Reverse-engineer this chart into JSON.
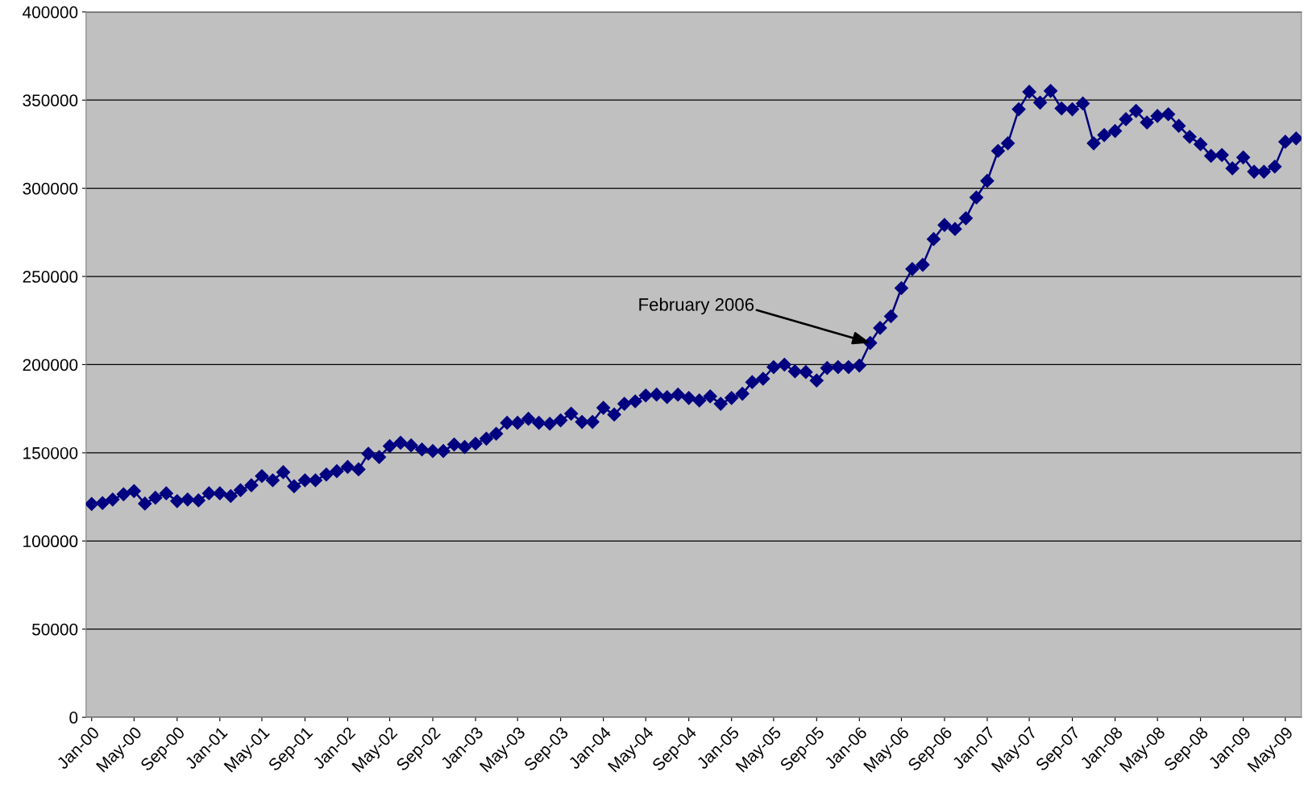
{
  "chart_data": {
    "type": "line",
    "x": [
      "2000-01",
      "2000-02",
      "2000-03",
      "2000-04",
      "2000-05",
      "2000-06",
      "2000-07",
      "2000-08",
      "2000-09",
      "2000-10",
      "2000-11",
      "2000-12",
      "2001-01",
      "2001-02",
      "2001-03",
      "2001-04",
      "2001-05",
      "2001-06",
      "2001-07",
      "2001-08",
      "2001-09",
      "2001-10",
      "2001-11",
      "2001-12",
      "2002-01",
      "2002-02",
      "2002-03",
      "2002-04",
      "2002-05",
      "2002-06",
      "2002-07",
      "2002-08",
      "2002-09",
      "2002-10",
      "2002-11",
      "2002-12",
      "2003-01",
      "2003-02",
      "2003-03",
      "2003-04",
      "2003-05",
      "2003-06",
      "2003-07",
      "2003-08",
      "2003-09",
      "2003-10",
      "2003-11",
      "2003-12",
      "2004-01",
      "2004-02",
      "2004-03",
      "2004-04",
      "2004-05",
      "2004-06",
      "2004-07",
      "2004-08",
      "2004-09",
      "2004-10",
      "2004-11",
      "2004-12",
      "2005-01",
      "2005-02",
      "2005-03",
      "2005-04",
      "2005-05",
      "2005-06",
      "2005-07",
      "2005-08",
      "2005-09",
      "2005-10",
      "2005-11",
      "2005-12",
      "2006-01",
      "2006-02",
      "2006-03",
      "2006-04",
      "2006-05",
      "2006-06",
      "2006-07",
      "2006-08",
      "2006-09",
      "2006-10",
      "2006-11",
      "2006-12",
      "2007-01",
      "2007-02",
      "2007-03",
      "2007-04",
      "2007-05",
      "2007-06",
      "2007-07",
      "2007-08",
      "2007-09",
      "2007-10",
      "2007-11",
      "2007-12",
      "2008-01",
      "2008-02",
      "2008-03",
      "2008-04",
      "2008-05",
      "2008-06",
      "2008-07",
      "2008-08",
      "2008-09",
      "2008-10",
      "2008-11",
      "2008-12",
      "2009-01",
      "2009-02",
      "2009-03",
      "2009-04",
      "2009-05",
      "2009-06"
    ],
    "series": [
      {
        "color": "#000080",
        "values": [
          121000,
          121500,
          123500,
          126500,
          128300,
          121200,
          124500,
          127000,
          122600,
          123500,
          123000,
          127000,
          127000,
          125500,
          128800,
          131600,
          136800,
          134400,
          139000,
          131000,
          134400,
          134400,
          137700,
          139600,
          142000,
          140600,
          149500,
          147600,
          153800,
          155700,
          154200,
          151900,
          151000,
          151000,
          154700,
          153300,
          155200,
          158000,
          160800,
          167000,
          167000,
          169300,
          167000,
          166500,
          168400,
          172200,
          167500,
          167500,
          175500,
          171700,
          177800,
          179200,
          182500,
          183000,
          181600,
          183000,
          181100,
          179700,
          182000,
          177800,
          181100,
          183500,
          190100,
          192000,
          198600,
          200000,
          196200,
          195800,
          191000,
          198100,
          198600,
          198600,
          199500,
          212300,
          220800,
          227400,
          243400,
          254200,
          256600,
          271200,
          279200,
          276900,
          283000,
          294800,
          304200,
          321200,
          325500,
          344800,
          354700,
          348600,
          355200,
          345300,
          344800,
          348100,
          325500,
          330200,
          332500,
          339200,
          343900,
          337300,
          341000,
          342000,
          335400,
          329200,
          325000,
          318400,
          318900,
          311300,
          317500,
          309400,
          309400,
          312300,
          326400,
          328300
        ]
      }
    ],
    "xlim": [
      "1999-12-16",
      "2009-06-16"
    ],
    "xticks": [
      {
        "value": "2000-01",
        "label": "Jan-00"
      },
      {
        "value": "2000-05",
        "label": "May-00"
      },
      {
        "value": "2000-09",
        "label": "Sep-00"
      },
      {
        "value": "2001-01",
        "label": "Jan-01"
      },
      {
        "value": "2001-05",
        "label": "May-01"
      },
      {
        "value": "2001-09",
        "label": "Sep-01"
      },
      {
        "value": "2002-01",
        "label": "Jan-02"
      },
      {
        "value": "2002-05",
        "label": "May-02"
      },
      {
        "value": "2002-09",
        "label": "Sep-02"
      },
      {
        "value": "2003-01",
        "label": "Jan-03"
      },
      {
        "value": "2003-05",
        "label": "May-03"
      },
      {
        "value": "2003-09",
        "label": "Sep-03"
      },
      {
        "value": "2004-01",
        "label": "Jan-04"
      },
      {
        "value": "2004-05",
        "label": "May-04"
      },
      {
        "value": "2004-09",
        "label": "Sep-04"
      },
      {
        "value": "2005-01",
        "label": "Jan-05"
      },
      {
        "value": "2005-05",
        "label": "May-05"
      },
      {
        "value": "2005-09",
        "label": "Sep-05"
      },
      {
        "value": "2006-01",
        "label": "Jan-06"
      },
      {
        "value": "2006-05",
        "label": "May-06"
      },
      {
        "value": "2006-09",
        "label": "Sep-06"
      },
      {
        "value": "2007-01",
        "label": "Jan-07"
      },
      {
        "value": "2007-05",
        "label": "May-07"
      },
      {
        "value": "2007-09",
        "label": "Sep-07"
      },
      {
        "value": "2008-01",
        "label": "Jan-08"
      },
      {
        "value": "2008-05",
        "label": "May-08"
      },
      {
        "value": "2008-09",
        "label": "Sep-08"
      },
      {
        "value": "2009-01",
        "label": "Jan-09"
      },
      {
        "value": "2009-05",
        "label": "May-09"
      }
    ],
    "ylim": [
      0,
      400000
    ],
    "yticks": [
      0,
      50000,
      100000,
      150000,
      200000,
      250000,
      300000,
      350000,
      400000
    ],
    "grid": "y",
    "marker": "diamond",
    "line_style": "solid",
    "legend": false,
    "annotations": [
      {
        "text": "February 2006",
        "x": "2006-02",
        "y": 212300
      }
    ]
  }
}
